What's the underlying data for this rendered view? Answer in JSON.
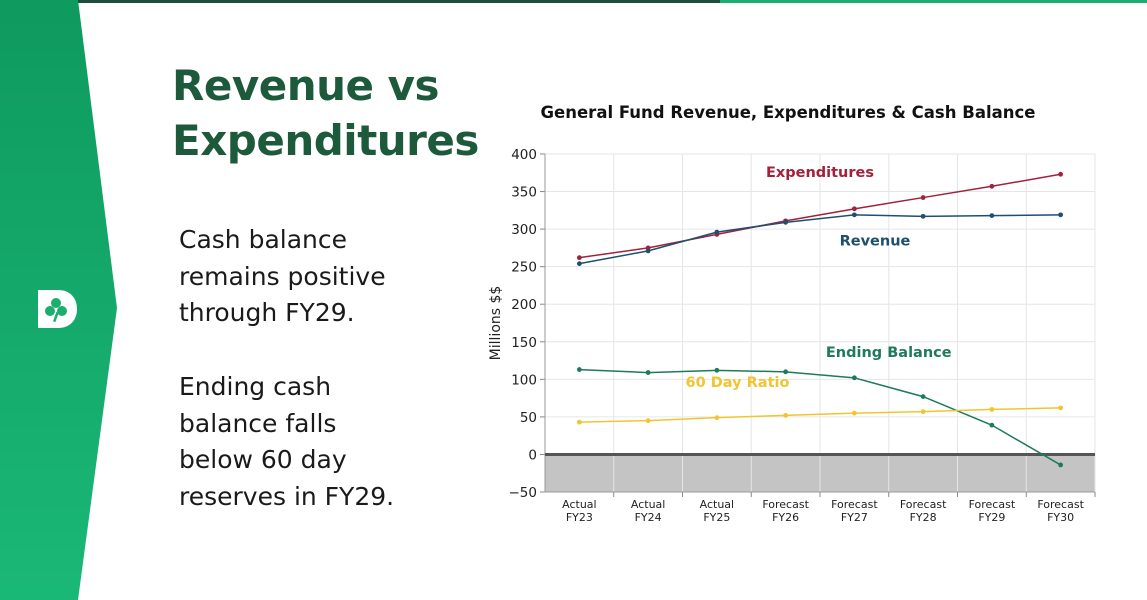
{
  "slide": {
    "title": "Revenue vs\nExpenditures",
    "bullets": [
      "Cash balance\nremains positive\nthrough FY29.",
      "Ending cash\nbalance falls\nbelow 60 day\nreserves in FY29."
    ],
    "logo_icon": "clover-d-logo-icon",
    "colors": {
      "title": "#1d5a3c",
      "band": "#1aae6f",
      "topbar_dark": "#1e4d3b"
    }
  },
  "chart_data": {
    "type": "line",
    "title": "General Fund Revenue, Expenditures & Cash Balance",
    "ylabel": "Millions $$",
    "xlabel": "",
    "ylim": [
      -50,
      400
    ],
    "yticks": [
      -50,
      0,
      50,
      100,
      150,
      200,
      250,
      300,
      350,
      400
    ],
    "grid": true,
    "categories": [
      [
        "Actual",
        "FY23"
      ],
      [
        "Actual",
        "FY24"
      ],
      [
        "Actual",
        "FY25"
      ],
      [
        "Forecast",
        "FY26"
      ],
      [
        "Forecast",
        "FY27"
      ],
      [
        "Forecast",
        "FY28"
      ],
      [
        "Forecast",
        "FY29"
      ],
      [
        "Forecast",
        "FY30"
      ]
    ],
    "series": [
      {
        "name": "Expenditures",
        "color": "#a3213a",
        "values": [
          262,
          275,
          293,
          311,
          327,
          342,
          357,
          373
        ]
      },
      {
        "name": "Revenue",
        "color": "#1e4f6e",
        "values": [
          254,
          271,
          296,
          309,
          319,
          317,
          318,
          319
        ]
      },
      {
        "name": "Ending Balance",
        "color": "#1e7a5c",
        "values": [
          113,
          109,
          112,
          110,
          102,
          77,
          39,
          -14
        ]
      },
      {
        "name": "60 Day Ratio",
        "color": "#f2c530",
        "values": [
          43,
          45,
          49,
          52,
          55,
          57,
          60,
          62
        ]
      }
    ]
  }
}
